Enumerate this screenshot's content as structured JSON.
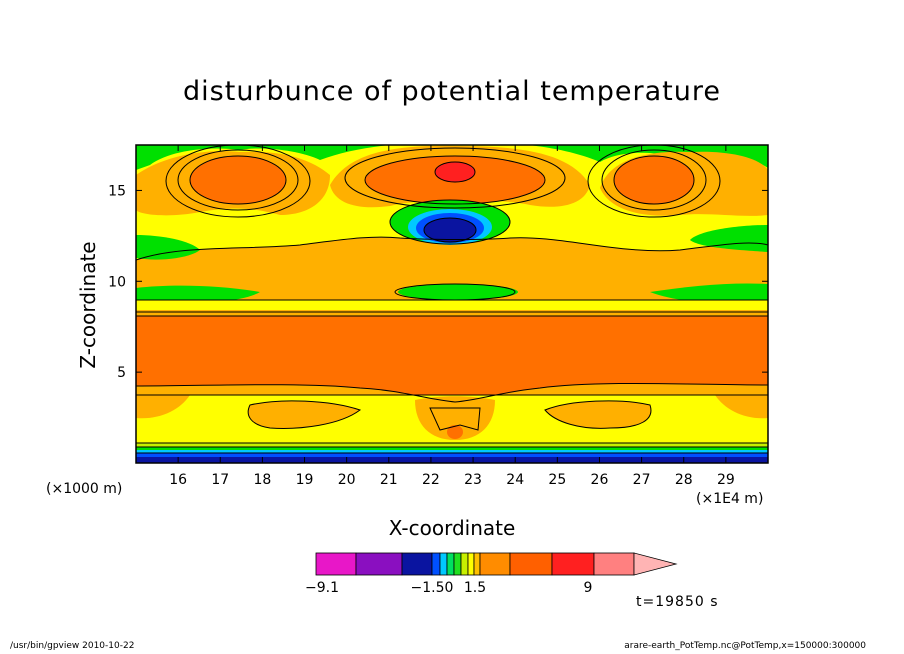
{
  "chart_data": {
    "type": "heatmap",
    "title": "disturbunce of potential temperature",
    "xlabel": "X-coordinate",
    "ylabel": "Z-coordinate",
    "x_scale_label": "(×1000 m)",
    "x_unit_label": "(×1E4 m)",
    "x_ticks": [
      "16",
      "17",
      "18",
      "19",
      "20",
      "21",
      "22",
      "23",
      "24",
      "25",
      "26",
      "27",
      "28",
      "29"
    ],
    "y_ticks": [
      "5",
      "10",
      "15"
    ],
    "xlim": [
      15.0,
      30.0
    ],
    "ylim": [
      0,
      17.5
    ],
    "colorbar": {
      "labels": [
        "−9.1",
        "−1.50",
        "1.5",
        "9"
      ],
      "colors": [
        "#e817c8",
        "#8a0fc0",
        "#0a14a0",
        "#0050ff",
        "#00c8ff",
        "#00e060",
        "#20e020",
        "#c8f000",
        "#ffff00",
        "#ffc000",
        "#ff8c00",
        "#ff6000",
        "#ff2020",
        "#ff8080",
        "#ffb4b4"
      ]
    },
    "colors": {
      "orange": "#ff7200",
      "light_orange": "#ffb000",
      "yellow": "#ffff00",
      "green": "#00e000",
      "red": "#ff2020",
      "blue": "#0a14a0",
      "cyan": "#00c8ff"
    },
    "time_label": "t=19850 s"
  },
  "footer": {
    "left": "/usr/bin/gpview   2010-10-22",
    "right": "arare-earth_PotTemp.nc@PotTemp,x=150000:300000"
  }
}
